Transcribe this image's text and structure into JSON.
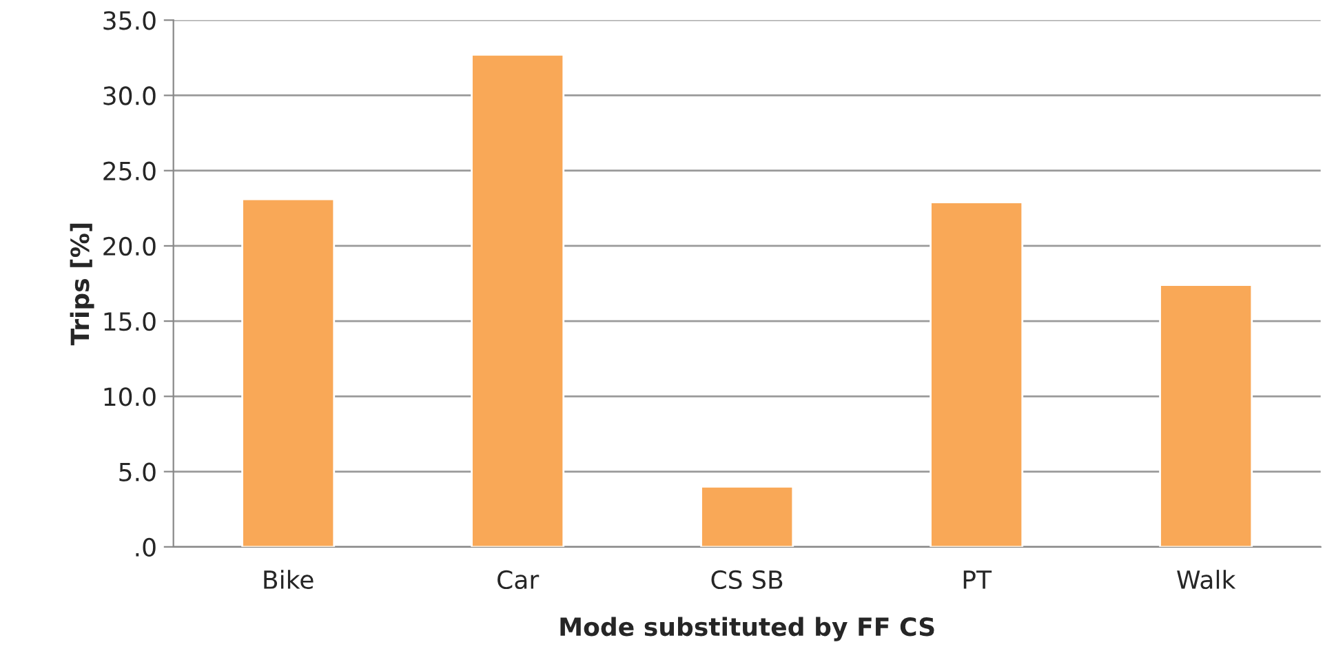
{
  "chart_data": {
    "type": "bar",
    "xlabel": "Mode substituted by FF CS",
    "ylabel": "Trips [%]",
    "categories": [
      "Bike",
      "Car",
      "CS SB",
      "PT",
      "Walk"
    ],
    "values": [
      23.1,
      32.7,
      4.0,
      22.9,
      17.4
    ],
    "color": "#f9a857",
    "ylim": [
      0,
      35
    ],
    "yticks": [
      {
        "value": 0,
        "label": ".0"
      },
      {
        "value": 5,
        "label": "5.0"
      },
      {
        "value": 10,
        "label": "10.0"
      },
      {
        "value": 15,
        "label": "15.0"
      },
      {
        "value": 20,
        "label": "20.0"
      },
      {
        "value": 25,
        "label": "25.0"
      },
      {
        "value": 30,
        "label": "30.0"
      },
      {
        "value": 35,
        "label": "35.0"
      }
    ],
    "grid": "y",
    "legend": false
  }
}
